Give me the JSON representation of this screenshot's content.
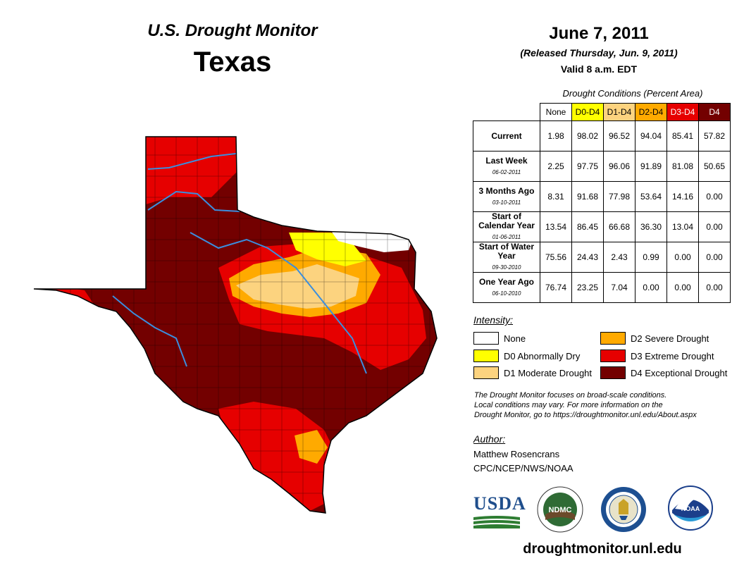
{
  "header": {
    "subtitle": "U.S. Drought Monitor",
    "state": "Texas",
    "date": "June 7, 2011",
    "released": "(Released Thursday, Jun. 9, 2011)",
    "valid": "Valid 8 a.m. EDT"
  },
  "table": {
    "title": "Drought Conditions (Percent Area)",
    "columns": [
      {
        "label": "None",
        "color": "#ffffff",
        "text": "#000000"
      },
      {
        "label": "D0-D4",
        "color": "#ffff00",
        "text": "#000000"
      },
      {
        "label": "D1-D4",
        "color": "#fcd37f",
        "text": "#000000"
      },
      {
        "label": "D2-D4",
        "color": "#ffaa00",
        "text": "#000000"
      },
      {
        "label": "D3-D4",
        "color": "#e60000",
        "text": "#ffffff"
      },
      {
        "label": "D4",
        "color": "#730000",
        "text": "#ffffff"
      }
    ],
    "rows": [
      {
        "label": "Current",
        "date": "",
        "values": [
          "1.98",
          "98.02",
          "96.52",
          "94.04",
          "85.41",
          "57.82"
        ]
      },
      {
        "label": "Last Week",
        "date": "06-02-2011",
        "values": [
          "2.25",
          "97.75",
          "96.06",
          "91.89",
          "81.08",
          "50.65"
        ]
      },
      {
        "label": "3 Months Ago",
        "date": "03-10-2011",
        "values": [
          "8.31",
          "91.68",
          "77.98",
          "53.64",
          "14.16",
          "0.00"
        ]
      },
      {
        "label": "Start of Calendar Year",
        "date": "01-06-2011",
        "values": [
          "13.54",
          "86.45",
          "66.68",
          "36.30",
          "13.04",
          "0.00"
        ]
      },
      {
        "label": "Start of Water Year",
        "date": "09-30-2010",
        "values": [
          "75.56",
          "24.43",
          "2.43",
          "0.99",
          "0.00",
          "0.00"
        ]
      },
      {
        "label": "One Year Ago",
        "date": "06-10-2010",
        "values": [
          "76.74",
          "23.25",
          "7.04",
          "0.00",
          "0.00",
          "0.00"
        ]
      }
    ]
  },
  "legend": {
    "title": "Intensity:",
    "items": [
      {
        "label": "None",
        "color": "#ffffff"
      },
      {
        "label": "D0 Abnormally Dry",
        "color": "#ffff00"
      },
      {
        "label": "D1 Moderate Drought",
        "color": "#fcd37f"
      },
      {
        "label": "D2 Severe Drought",
        "color": "#ffaa00"
      },
      {
        "label": "D3 Extreme Drought",
        "color": "#e60000"
      },
      {
        "label": "D4 Exceptional Drought",
        "color": "#730000"
      }
    ]
  },
  "note": {
    "line1": "The Drought Monitor focuses on broad-scale conditions.",
    "line2": "Local conditions may vary. For more information on the",
    "line3": "Drought Monitor, go to https://droughtmonitor.unl.edu/About.aspx"
  },
  "author": {
    "title": "Author:",
    "name": "Matthew Rosencrans",
    "org": "CPC/NCEP/NWS/NOAA"
  },
  "logos": {
    "usda": "USDA",
    "ndmc": "NDMC",
    "noaa": "NOAA"
  },
  "footer": {
    "url": "droughtmonitor.unl.edu"
  },
  "map": {
    "colors": {
      "d4": "#730000",
      "d3": "#e60000",
      "d2": "#ffaa00",
      "d1": "#fcd37f",
      "d0": "#ffff00",
      "none": "#ffffff",
      "river": "#3b8ede",
      "border": "#000000"
    }
  }
}
